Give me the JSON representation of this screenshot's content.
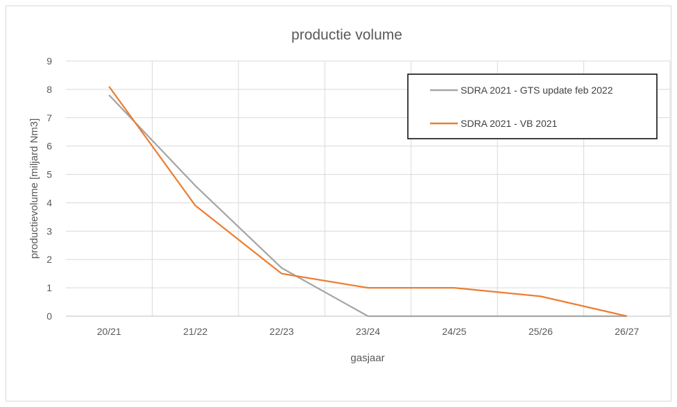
{
  "chart_data": {
    "type": "line",
    "title": "productie volume",
    "xlabel": "gasjaar",
    "ylabel": "productievolume [miljard Nm3]",
    "categories": [
      "20/21",
      "21/22",
      "22/23",
      "23/24",
      "24/25",
      "25/26",
      "26/27"
    ],
    "ylim": [
      0,
      9
    ],
    "yticks": [
      "0",
      "1",
      "2",
      "3",
      "4",
      "5",
      "6",
      "7",
      "8",
      "9"
    ],
    "grid": true,
    "legend_position": "top-right",
    "series": [
      {
        "name": "SDRA 2021 - GTS update feb 2022",
        "values": [
          7.8,
          4.6,
          1.7,
          0,
          0,
          0,
          0
        ],
        "color": "#a5a5a5"
      },
      {
        "name": "SDRA 2021 - VB 2021",
        "values": [
          8.1,
          3.9,
          1.5,
          1.0,
          1.0,
          0.7,
          0
        ],
        "color": "#ed7d31"
      }
    ]
  }
}
